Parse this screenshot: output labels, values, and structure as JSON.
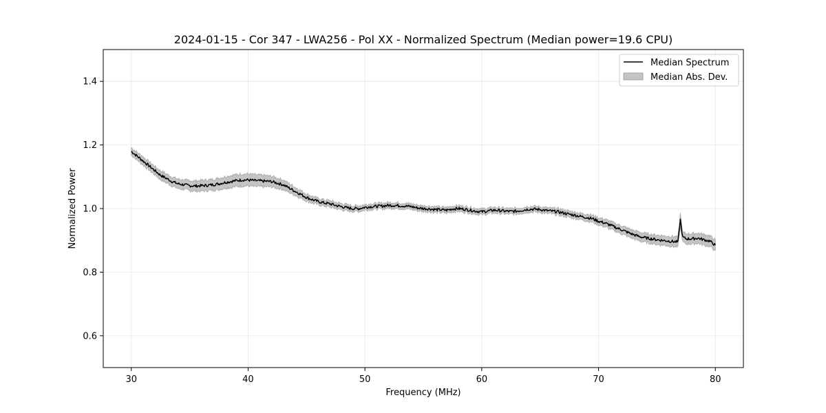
{
  "chart_data": {
    "type": "line",
    "title": "2024-01-15 - Cor 347 - LWA256 - Pol XX - Normalized Spectrum (Median power=19.6 CPU)",
    "xlabel": "Frequency (MHz)",
    "ylabel": "Normalized Power",
    "xlim": [
      27.6,
      82.4
    ],
    "ylim": [
      0.5,
      1.5
    ],
    "xticks": [
      30,
      40,
      50,
      60,
      70,
      80
    ],
    "yticks": [
      0.6,
      0.8,
      1.0,
      1.2,
      1.4
    ],
    "xtick_labels": [
      "30",
      "40",
      "50",
      "60",
      "70",
      "80"
    ],
    "ytick_labels": [
      "0.6",
      "0.8",
      "1.0",
      "1.2",
      "1.4"
    ],
    "grid": true,
    "legend": {
      "placement": "top-right",
      "entries": [
        {
          "label": "Median Spectrum",
          "kind": "line",
          "color": "#000000"
        },
        {
          "label": "Median Abs. Dev.",
          "kind": "band",
          "color": "#c4c4c4"
        }
      ]
    },
    "series": [
      {
        "name": "Median Spectrum",
        "color": "#000000",
        "band_color": "#c4c4c4",
        "x": [
          30,
          30.5,
          31,
          31.5,
          32,
          32.5,
          33,
          33.5,
          34,
          34.5,
          35,
          35.5,
          36,
          36.5,
          37,
          37.5,
          38,
          38.5,
          39,
          39.5,
          40,
          40.5,
          41,
          41.5,
          42,
          42.5,
          43,
          43.5,
          44,
          44.5,
          45,
          45.5,
          46,
          46.5,
          47,
          47.5,
          48,
          48.5,
          49,
          49.5,
          50,
          50.5,
          51,
          51.5,
          52,
          52.5,
          53,
          53.5,
          54,
          54.5,
          55,
          55.5,
          56,
          56.5,
          57,
          57.5,
          58,
          58.5,
          59,
          59.5,
          60,
          60.5,
          61,
          61.5,
          62,
          62.5,
          63,
          63.5,
          64,
          64.5,
          65,
          65.5,
          66,
          66.5,
          67,
          67.5,
          68,
          68.5,
          69,
          69.5,
          70,
          70.5,
          71,
          71.5,
          72,
          72.5,
          73,
          73.5,
          74,
          74.5,
          75,
          75.5,
          76,
          76.5,
          76.8,
          77,
          77.2,
          77.5,
          78,
          78.5,
          79,
          79.5,
          80
        ],
        "median": [
          1.18,
          1.165,
          1.15,
          1.135,
          1.12,
          1.105,
          1.095,
          1.085,
          1.078,
          1.075,
          1.072,
          1.071,
          1.072,
          1.073,
          1.075,
          1.078,
          1.082,
          1.085,
          1.088,
          1.09,
          1.09,
          1.088,
          1.087,
          1.086,
          1.085,
          1.08,
          1.075,
          1.065,
          1.055,
          1.045,
          1.035,
          1.028,
          1.022,
          1.018,
          1.015,
          1.01,
          1.006,
          1.002,
          1.0,
          1.0,
          1.004,
          1.006,
          1.007,
          1.008,
          1.01,
          1.01,
          1.009,
          1.008,
          1.006,
          1.002,
          1.0,
          0.999,
          0.997,
          0.996,
          0.995,
          0.999,
          1.0,
          0.998,
          0.995,
          0.992,
          0.99,
          0.992,
          0.995,
          0.994,
          0.992,
          0.991,
          0.992,
          0.995,
          0.998,
          0.998,
          0.997,
          0.994,
          0.992,
          0.99,
          0.986,
          0.982,
          0.979,
          0.975,
          0.972,
          0.968,
          0.96,
          0.955,
          0.948,
          0.94,
          0.933,
          0.925,
          0.918,
          0.912,
          0.908,
          0.905,
          0.902,
          0.9,
          0.898,
          0.896,
          0.895,
          0.965,
          0.91,
          0.905,
          0.905,
          0.907,
          0.902,
          0.898,
          0.885
        ],
        "mad": [
          0.012,
          0.012,
          0.013,
          0.013,
          0.013,
          0.014,
          0.014,
          0.014,
          0.015,
          0.015,
          0.016,
          0.016,
          0.017,
          0.017,
          0.017,
          0.018,
          0.018,
          0.019,
          0.019,
          0.019,
          0.019,
          0.019,
          0.018,
          0.018,
          0.017,
          0.016,
          0.015,
          0.014,
          0.013,
          0.012,
          0.011,
          0.011,
          0.01,
          0.01,
          0.01,
          0.01,
          0.01,
          0.01,
          0.009,
          0.009,
          0.009,
          0.009,
          0.009,
          0.009,
          0.009,
          0.009,
          0.009,
          0.009,
          0.009,
          0.009,
          0.009,
          0.009,
          0.009,
          0.009,
          0.009,
          0.009,
          0.009,
          0.009,
          0.009,
          0.009,
          0.009,
          0.009,
          0.009,
          0.009,
          0.009,
          0.009,
          0.009,
          0.009,
          0.009,
          0.009,
          0.009,
          0.009,
          0.009,
          0.01,
          0.01,
          0.01,
          0.01,
          0.01,
          0.011,
          0.011,
          0.011,
          0.012,
          0.012,
          0.012,
          0.013,
          0.013,
          0.013,
          0.014,
          0.014,
          0.014,
          0.015,
          0.015,
          0.015,
          0.016,
          0.016,
          0.02,
          0.016,
          0.016,
          0.016,
          0.016,
          0.017,
          0.017,
          0.017
        ]
      }
    ]
  }
}
